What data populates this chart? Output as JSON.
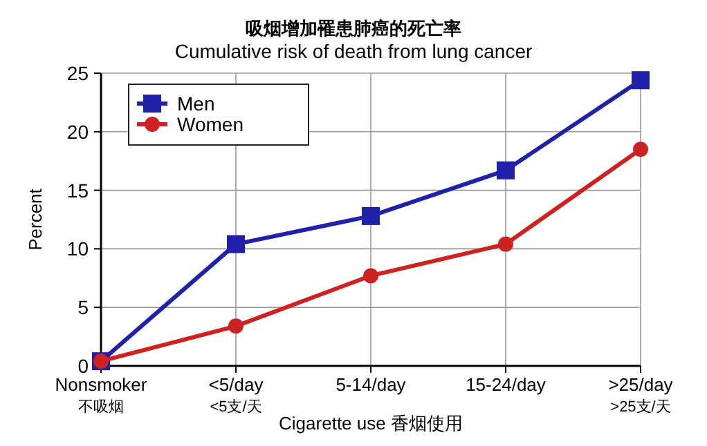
{
  "chart_data": {
    "type": "line",
    "title": "吸烟增加罹患肺癌的死亡率",
    "subtitle": "Cumulative risk of death from lung cancer",
    "xlabel": "Cigarette use 香烟使用",
    "ylabel": "Percent",
    "categories": [
      "Nonsmoker\n不吸烟",
      "<5/day\n<5支/天",
      "5-14/day",
      "15-24/day",
      ">25/day\n>25支/天"
    ],
    "series": [
      {
        "name": "Men",
        "color": "#2020a8",
        "marker": "square",
        "values": [
          0.4,
          10.4,
          12.8,
          16.7,
          24.4
        ]
      },
      {
        "name": "Women",
        "color": "#cc2222",
        "marker": "circle",
        "values": [
          0.4,
          3.4,
          7.7,
          10.4,
          18.5
        ]
      }
    ],
    "ylim": [
      0,
      25
    ],
    "yticks": [
      0,
      5,
      10,
      15,
      20,
      25
    ],
    "grid": true,
    "legend": "top left",
    "line_style": "solid"
  }
}
